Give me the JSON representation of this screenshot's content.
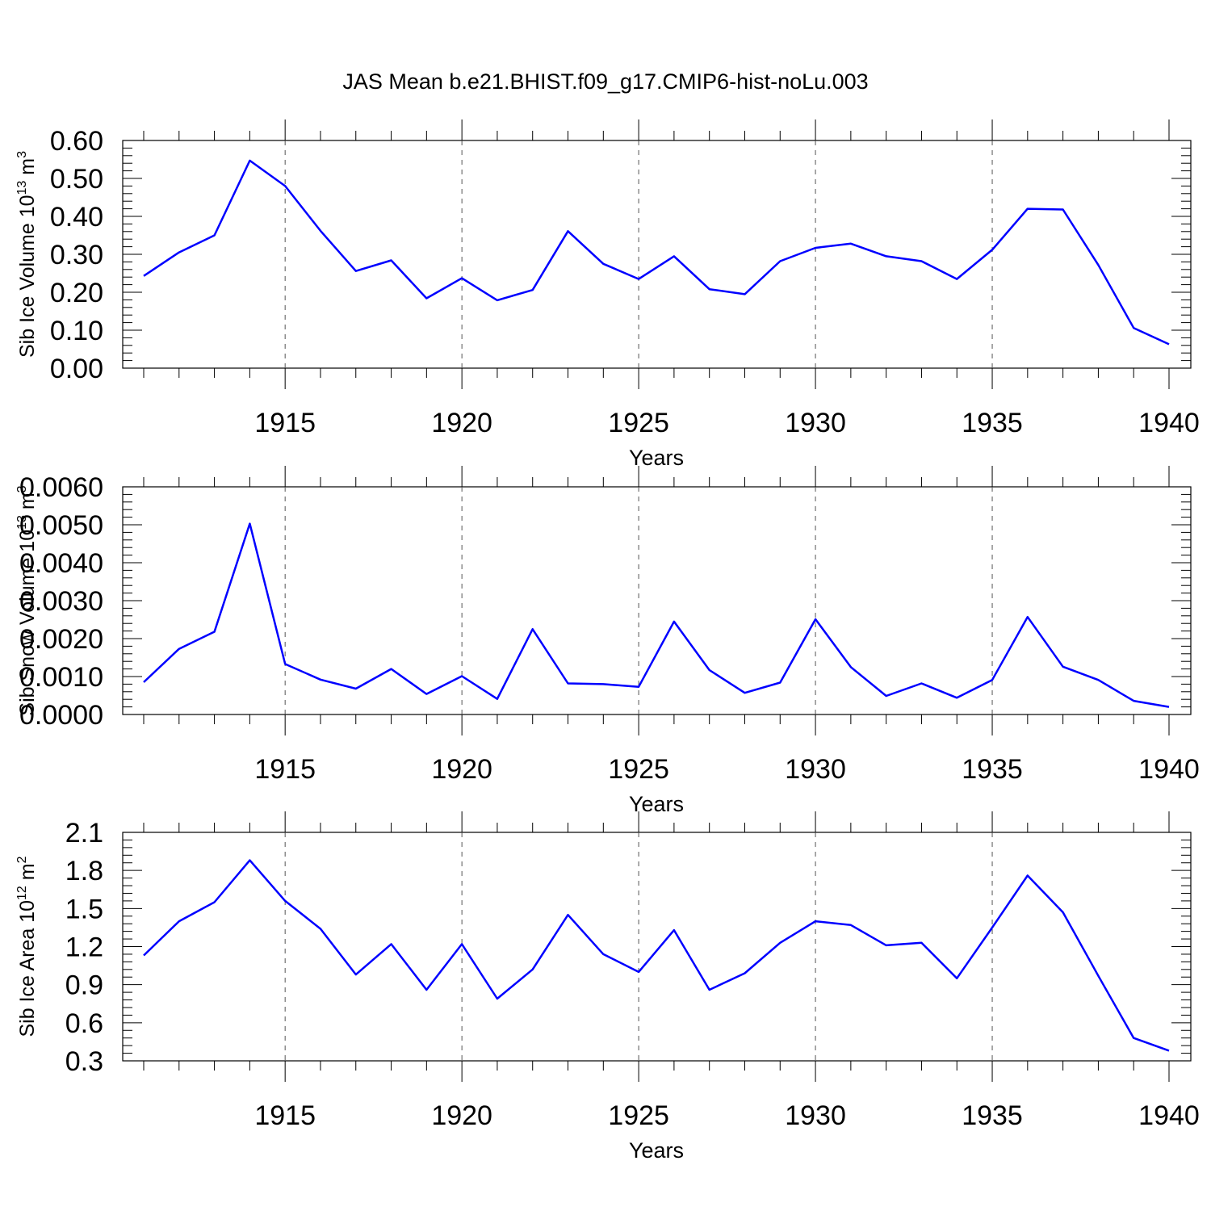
{
  "title": "JAS Mean b.e21.BHIST.f09_g17.CMIP6-hist-noLu.003",
  "line_color": "#0000ff",
  "chart_data": [
    {
      "type": "line",
      "ylabel": "Sib Ice Volume 10",
      "ylabel_exp": "13",
      "ylabel_unit": " m",
      "ylabel_unit_exp": "3",
      "xlabel": "Years",
      "xlim": [
        1911,
        1940
      ],
      "ylim": [
        0.0,
        0.6
      ],
      "xticks": [
        1915,
        1920,
        1925,
        1930,
        1935,
        1940
      ],
      "yticks": [
        0.0,
        0.1,
        0.2,
        0.3,
        0.4,
        0.5,
        0.6
      ],
      "ytick_labels": [
        "0.00",
        "0.10",
        "0.20",
        "0.30",
        "0.40",
        "0.50",
        "0.60"
      ],
      "x": [
        1911,
        1912,
        1913,
        1914,
        1915,
        1916,
        1917,
        1918,
        1919,
        1920,
        1921,
        1922,
        1923,
        1924,
        1925,
        1926,
        1927,
        1928,
        1929,
        1930,
        1931,
        1932,
        1933,
        1934,
        1935,
        1936,
        1937,
        1938,
        1939,
        1940
      ],
      "values": [
        0.243,
        0.305,
        0.35,
        0.547,
        0.48,
        0.362,
        0.256,
        0.284,
        0.184,
        0.237,
        0.179,
        0.206,
        0.361,
        0.275,
        0.235,
        0.295,
        0.208,
        0.195,
        0.282,
        0.317,
        0.328,
        0.295,
        0.282,
        0.235,
        0.312,
        0.42,
        0.418,
        0.272,
        0.106,
        0.063
      ]
    },
    {
      "type": "line",
      "ylabel": "Sib Snow Volume 10",
      "ylabel_exp": "13",
      "ylabel_unit": " m",
      "ylabel_unit_exp": "3",
      "xlabel": "Years",
      "xlim": [
        1911,
        1940
      ],
      "ylim": [
        0.0,
        0.006
      ],
      "xticks": [
        1915,
        1920,
        1925,
        1930,
        1935,
        1940
      ],
      "yticks": [
        0.0,
        0.001,
        0.002,
        0.003,
        0.004,
        0.005,
        0.006
      ],
      "ytick_labels": [
        "0.0000",
        "0.0010",
        "0.0020",
        "0.0030",
        "0.0040",
        "0.0050",
        "0.0060"
      ],
      "x": [
        1911,
        1912,
        1913,
        1914,
        1915,
        1916,
        1917,
        1918,
        1919,
        1920,
        1921,
        1922,
        1923,
        1924,
        1925,
        1926,
        1927,
        1928,
        1929,
        1930,
        1931,
        1932,
        1933,
        1934,
        1935,
        1936,
        1937,
        1938,
        1939,
        1940
      ],
      "values": [
        0.00085,
        0.00173,
        0.00218,
        0.00503,
        0.00133,
        0.00092,
        0.00068,
        0.0012,
        0.00054,
        0.00101,
        0.00041,
        0.00225,
        0.00082,
        0.0008,
        0.00073,
        0.00245,
        0.00117,
        0.00057,
        0.00084,
        0.00251,
        0.00125,
        0.00049,
        0.00082,
        0.00044,
        0.00091,
        0.00257,
        0.00126,
        0.00091,
        0.00036,
        0.0002
      ]
    },
    {
      "type": "line",
      "ylabel": "Sib Ice Area 10",
      "ylabel_exp": "12",
      "ylabel_unit": " m",
      "ylabel_unit_exp": "2",
      "xlabel": "Years",
      "xlim": [
        1911,
        1940
      ],
      "ylim": [
        0.3,
        2.1
      ],
      "xticks": [
        1915,
        1920,
        1925,
        1930,
        1935,
        1940
      ],
      "yticks": [
        0.3,
        0.6,
        0.9,
        1.2,
        1.5,
        1.8,
        2.1
      ],
      "ytick_labels": [
        "0.3",
        "0.6",
        "0.9",
        "1.2",
        "1.5",
        "1.8",
        "2.1"
      ],
      "x": [
        1911,
        1912,
        1913,
        1914,
        1915,
        1916,
        1917,
        1918,
        1919,
        1920,
        1921,
        1922,
        1923,
        1924,
        1925,
        1926,
        1927,
        1928,
        1929,
        1930,
        1931,
        1932,
        1933,
        1934,
        1935,
        1936,
        1937,
        1938,
        1939,
        1940
      ],
      "values": [
        1.13,
        1.4,
        1.55,
        1.88,
        1.56,
        1.34,
        0.98,
        1.22,
        0.86,
        1.22,
        0.79,
        1.02,
        1.45,
        1.14,
        1.0,
        1.33,
        0.86,
        0.99,
        1.23,
        1.4,
        1.37,
        1.21,
        1.23,
        0.95,
        1.35,
        1.76,
        1.47,
        0.97,
        0.48,
        0.38
      ]
    }
  ]
}
